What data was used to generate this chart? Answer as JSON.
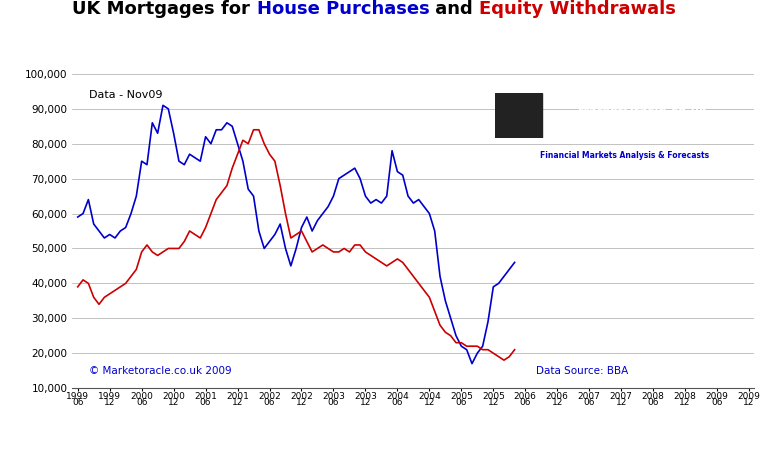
{
  "title_parts": [
    {
      "text": "UK Mortgages for ",
      "color": "black"
    },
    {
      "text": "House Purchases",
      "color": "#0000cc"
    },
    {
      "text": " and ",
      "color": "black"
    },
    {
      "text": "Equity Withdrawals",
      "color": "#cc0000"
    }
  ],
  "annotation_data": "Data - Nov09",
  "copyright": "© Marketoracle.co.uk 2009",
  "datasource": "Data Source: BBA",
  "ylim": [
    10000,
    100000
  ],
  "yticks": [
    10000,
    20000,
    30000,
    40000,
    50000,
    60000,
    70000,
    80000,
    90000,
    100000
  ],
  "background_color": "#ffffff",
  "grid_color": "#aaaaaa",
  "blue_color": "#0000cc",
  "red_color": "#cc0000",
  "house_purchases": [
    59000,
    60000,
    64000,
    57000,
    55000,
    53000,
    54000,
    53000,
    55000,
    56000,
    60000,
    65000,
    75000,
    74000,
    86000,
    83000,
    91000,
    90000,
    83000,
    75000,
    74000,
    77000,
    76000,
    75000,
    82000,
    80000,
    84000,
    84000,
    86000,
    85000,
    80000,
    75000,
    67000,
    65000,
    55000,
    50000,
    52000,
    54000,
    57000,
    50000,
    45000,
    50000,
    56000,
    59000,
    55000,
    58000,
    60000,
    62000,
    65000,
    70000,
    71000,
    72000,
    73000,
    70000,
    65000,
    63000,
    64000,
    63000,
    65000,
    78000,
    72000,
    71000,
    65000,
    63000,
    64000,
    62000,
    60000,
    55000,
    42000,
    35000,
    30000,
    25000,
    22000,
    21000,
    17000,
    20000,
    22000,
    29000,
    39000,
    40000,
    42000,
    44000,
    46000
  ],
  "equity_withdrawals": [
    39000,
    41000,
    40000,
    36000,
    34000,
    36000,
    37000,
    38000,
    39000,
    40000,
    42000,
    44000,
    49000,
    51000,
    49000,
    48000,
    49000,
    50000,
    50000,
    50000,
    52000,
    55000,
    54000,
    53000,
    56000,
    60000,
    64000,
    66000,
    68000,
    73000,
    77000,
    81000,
    80000,
    84000,
    84000,
    80000,
    77000,
    75000,
    68000,
    60000,
    53000,
    54000,
    55000,
    52000,
    49000,
    50000,
    51000,
    50000,
    49000,
    49000,
    50000,
    49000,
    51000,
    51000,
    49000,
    48000,
    47000,
    46000,
    45000,
    46000,
    47000,
    46000,
    44000,
    42000,
    40000,
    38000,
    36000,
    32000,
    28000,
    26000,
    25000,
    23000,
    23000,
    22000,
    22000,
    22000,
    21000,
    21000,
    20000,
    19000,
    18000,
    19000,
    21000
  ],
  "x_tick_years": [
    "1999",
    "1999",
    "2000",
    "2000",
    "2001",
    "2001",
    "2002",
    "2002",
    "2003",
    "2003",
    "2004",
    "2004",
    "2005",
    "2005",
    "2006",
    "2006",
    "2007",
    "2007",
    "2008",
    "2008",
    "2009",
    "2009"
  ],
  "x_tick_months": [
    "06",
    "12",
    "06",
    "12",
    "06",
    "12",
    "06",
    "12",
    "06",
    "12",
    "06",
    "12",
    "06",
    "12",
    "06",
    "12",
    "06",
    "12",
    "06",
    "12",
    "06",
    "12"
  ],
  "x_tick_positions": [
    0,
    6,
    12,
    18,
    24,
    30,
    36,
    42,
    48,
    54,
    60,
    66,
    72,
    78,
    84,
    90,
    96,
    102,
    108,
    114,
    120,
    126
  ],
  "logo_dark_color": "#333333",
  "logo_red_color": "#cc0000",
  "walayat_green": "#006600",
  "walayat_border": "#aaaaaa"
}
